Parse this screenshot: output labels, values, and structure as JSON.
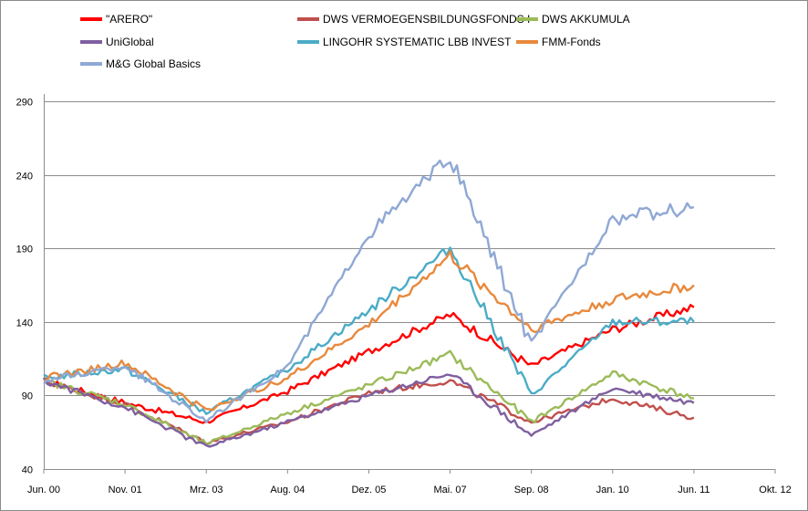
{
  "chart_data": {
    "type": "line",
    "title": "",
    "xlabel": "",
    "ylabel": "",
    "ylim": [
      40,
      290
    ],
    "yticks": [
      40,
      90,
      140,
      190,
      240,
      290
    ],
    "grid": true,
    "legend_position": "top",
    "x_ticks": [
      "Jun. 00",
      "Nov. 01",
      "Mrz. 03",
      "Aug. 04",
      "Dez. 05",
      "Mai. 07",
      "Sep. 08",
      "Jan. 10",
      "Jun. 11",
      "Okt. 12"
    ],
    "x": [
      "Jun. 00",
      "Nov. 01",
      "Mrz. 03",
      "Aug. 04",
      "Dez. 05",
      "Mai. 07",
      "Sep. 08",
      "Jan. 10",
      "Jun. 11"
    ],
    "series": [
      {
        "name": "\"ARERO\"",
        "color": "#ff0000",
        "values": [
          100,
          85,
          72,
          93,
          120,
          145,
          110,
          135,
          150
        ]
      },
      {
        "name": "DWS VERMOEGENSBILDUNGSFONDS  I",
        "color": "#c0504d",
        "values": [
          100,
          84,
          58,
          72,
          92,
          100,
          72,
          88,
          75
        ]
      },
      {
        "name": "DWS AKKUMULA",
        "color": "#9bbb59",
        "values": [
          100,
          84,
          57,
          78,
          97,
          118,
          72,
          105,
          88
        ]
      },
      {
        "name": "UniGlobal",
        "color": "#7f5fa0",
        "values": [
          100,
          82,
          55,
          72,
          90,
          105,
          63,
          95,
          85
        ]
      },
      {
        "name": "LINGOHR SYSTEMATIC  LBB INVEST",
        "color": "#4bacc6",
        "values": [
          102,
          108,
          78,
          108,
          148,
          190,
          90,
          140,
          140
        ]
      },
      {
        "name": "FMM-Fonds",
        "color": "#e8893d",
        "values": [
          102,
          112,
          80,
          102,
          138,
          185,
          135,
          155,
          165
        ]
      },
      {
        "name": "M&G Global Basics",
        "color": "#8fa8d4",
        "values": [
          100,
          110,
          73,
          110,
          200,
          252,
          125,
          210,
          218
        ]
      }
    ]
  }
}
